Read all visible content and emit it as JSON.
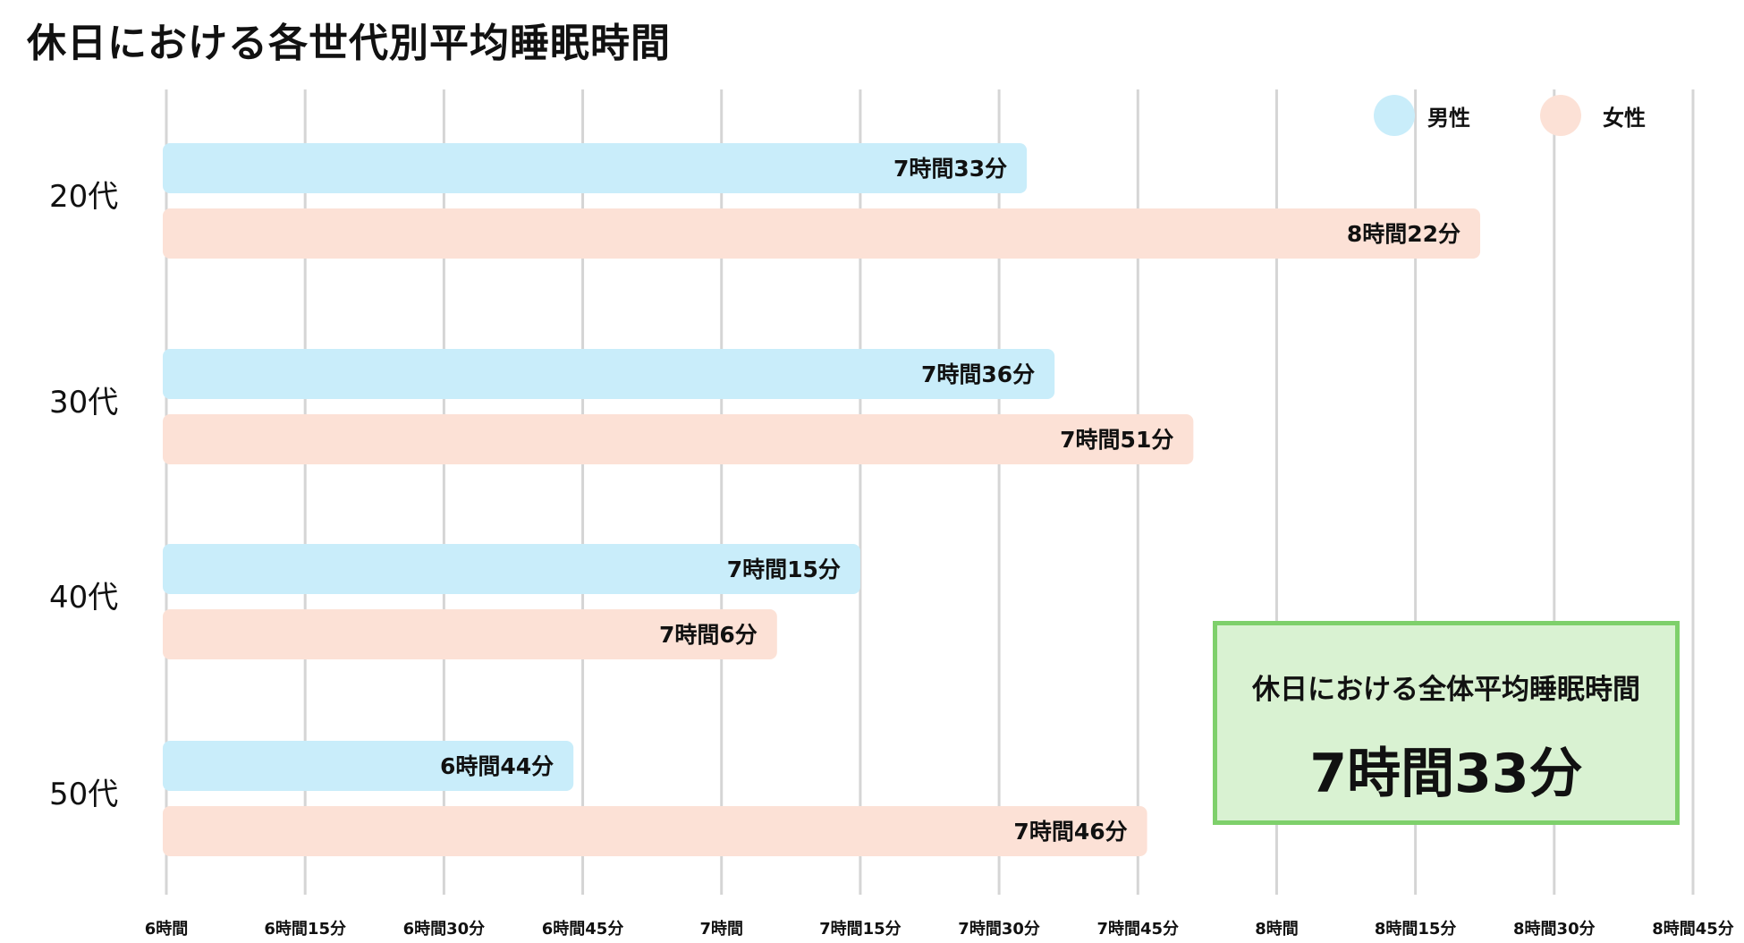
{
  "chart_data": {
    "type": "bar",
    "orientation": "horizontal",
    "title": "休日における各世代別平均睡眠時間",
    "categories": [
      "20代",
      "30代",
      "40代",
      "50代"
    ],
    "series": [
      {
        "name": "男性",
        "color": "#c9edfa",
        "values_minutes": [
          453,
          456,
          435,
          404
        ],
        "labels": [
          "7時間33分",
          "7時間36分",
          "7時間15分",
          "6時間44分"
        ]
      },
      {
        "name": "女性",
        "color": "#fce1d6",
        "values_minutes": [
          502,
          471,
          426,
          466
        ],
        "labels": [
          "8時間22分",
          "7時間51分",
          "7時間6分",
          "7時間46分"
        ]
      }
    ],
    "x_ticks_minutes": [
      360,
      375,
      390,
      405,
      420,
      435,
      450,
      465,
      480,
      495,
      510,
      525
    ],
    "x_tick_labels": [
      "6時間",
      "6時間15分",
      "6時間30分",
      "6時間45分",
      "7時間",
      "7時間15分",
      "7時間30分",
      "7時間45分",
      "8時間",
      "8時間15分",
      "8時間30分",
      "8時間45分"
    ],
    "xlim_minutes": [
      360,
      525
    ],
    "grid": true,
    "legend": "top-right",
    "xlabel": "",
    "ylabel": ""
  },
  "summary": {
    "label": "休日における全体平均睡眠時間",
    "value": "7時間33分"
  },
  "colors": {
    "grid": "#d5d5d5",
    "summary_border": "#7ed06b",
    "summary_bg": "#d9f2d2"
  }
}
